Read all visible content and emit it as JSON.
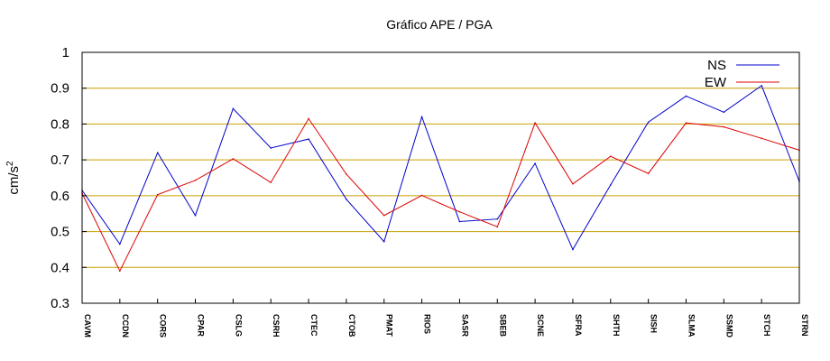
{
  "chart_data": {
    "type": "line",
    "title": "Gráfico  APE / PGA",
    "xlabel": "",
    "ylabel": "cm/s",
    "ylabel_superscript": "2",
    "ylim": [
      0.3,
      1.0
    ],
    "yticks": [
      "0.3",
      "0.4",
      "0.5",
      "0.6",
      "0.7",
      "0.8",
      "0.9",
      "1"
    ],
    "grid": "horizontal",
    "grid_color": "#c9a000",
    "legend_position": "top-right",
    "categories": [
      "CAVM",
      "CCDN",
      "CORS",
      "CPAR",
      "CSLG",
      "CSRH",
      "CTEC",
      "CTOB",
      "PMAT",
      "RIOS",
      "SASR",
      "SBEB",
      "SCNE",
      "SFRA",
      "SHTH",
      "SISH",
      "SLMA",
      "SSMD",
      "STCH",
      "STRN"
    ],
    "series": [
      {
        "name": "NS",
        "color": "#0000cc",
        "values": [
          0.615,
          0.465,
          0.72,
          0.545,
          0.843,
          0.733,
          0.758,
          0.59,
          0.472,
          0.82,
          0.528,
          0.535,
          0.69,
          0.45,
          0.63,
          0.805,
          0.878,
          0.833,
          0.907,
          0.64
        ]
      },
      {
        "name": "EW",
        "color": "#dd0000",
        "values": [
          0.607,
          0.39,
          0.603,
          0.643,
          0.703,
          0.637,
          0.815,
          0.66,
          0.545,
          0.601,
          0.555,
          0.513,
          0.803,
          0.633,
          0.71,
          0.662,
          0.803,
          0.792,
          0.76,
          0.727
        ]
      }
    ]
  }
}
